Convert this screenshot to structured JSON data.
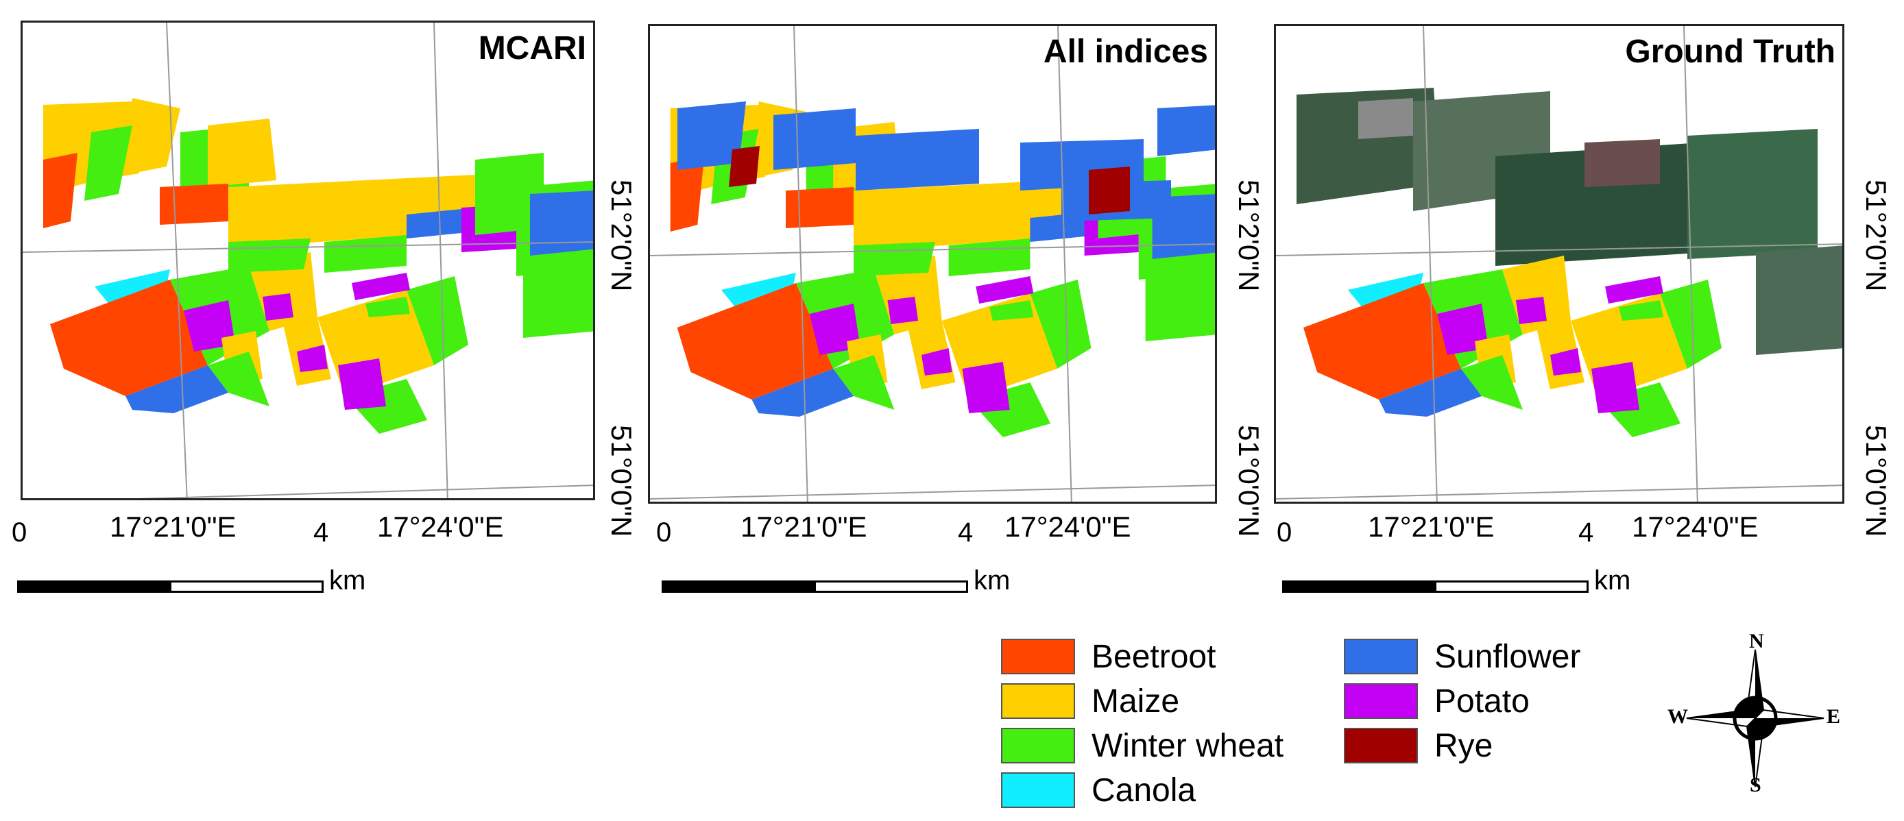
{
  "panels": [
    {
      "title": "MCARI"
    },
    {
      "title": "All indices"
    },
    {
      "title": "Ground Truth"
    }
  ],
  "axes": {
    "lon_ticks": [
      "17°21'0\"E",
      "17°24'0\"E"
    ],
    "lat_ticks": [
      "51°2'0\"N",
      "51°0'0\"N"
    ]
  },
  "scalebar": {
    "start": "0",
    "end": "4",
    "unit": "km"
  },
  "legend": [
    {
      "label": "Beetroot",
      "color": "#ff4500"
    },
    {
      "label": "Maize",
      "color": "#ffd000"
    },
    {
      "label": "Winter wheat",
      "color": "#44ee11"
    },
    {
      "label": "Canola",
      "color": "#11eeff"
    },
    {
      "label": "Sunflower",
      "color": "#2f6fe8"
    },
    {
      "label": "Potato",
      "color": "#c400f5"
    },
    {
      "label": "Rye",
      "color": "#a00000"
    }
  ],
  "compass": {
    "n": "N",
    "s": "S",
    "e": "E",
    "w": "W"
  }
}
